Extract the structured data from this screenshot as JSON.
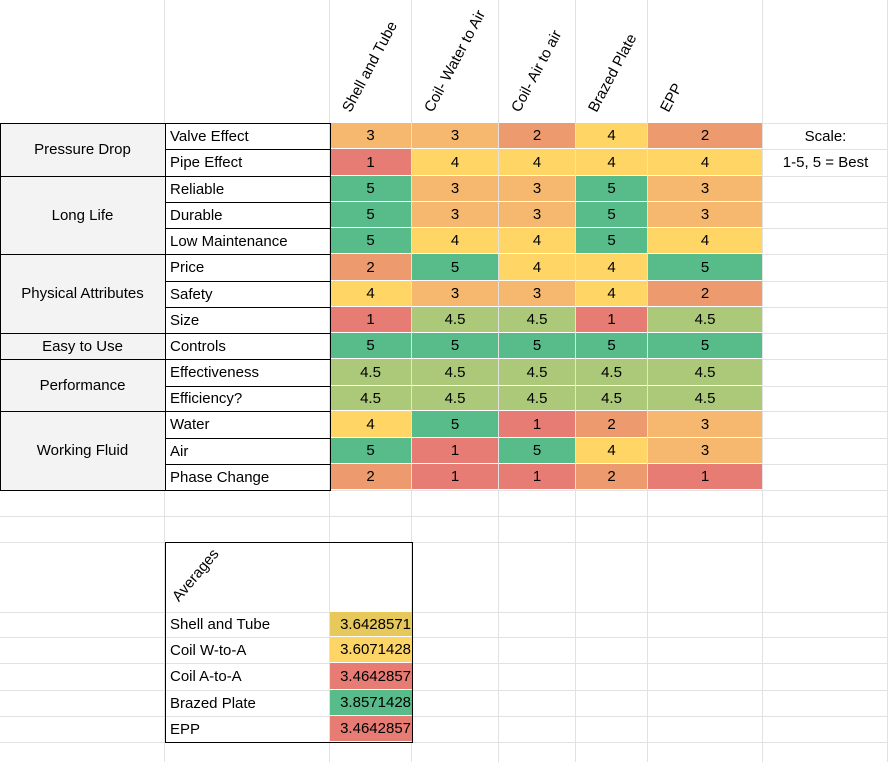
{
  "columns": [
    "Shell and Tube",
    "Coil- Water to Air",
    "Coil- Air to air",
    "Brazed Plate",
    "EPP"
  ],
  "scale": {
    "label": "Scale:",
    "value": "1-5, 5 = Best"
  },
  "colors": {
    "1": "#e67c73",
    "2": "#ed9a6f",
    "3": "#f6b86f",
    "4": "#ffd666",
    "4.5": "#abc978",
    "5": "#57bb8a"
  },
  "groups": [
    {
      "name": "Pressure Drop",
      "rows": [
        {
          "label": "Valve Effect",
          "values": [
            "3",
            "3",
            "2",
            "4",
            "2"
          ]
        },
        {
          "label": "Pipe Effect",
          "values": [
            "1",
            "4",
            "4",
            "4",
            "4"
          ]
        }
      ]
    },
    {
      "name": "Long Life",
      "rows": [
        {
          "label": "Reliable",
          "values": [
            "5",
            "3",
            "3",
            "5",
            "3"
          ]
        },
        {
          "label": "Durable",
          "values": [
            "5",
            "3",
            "3",
            "5",
            "3"
          ]
        },
        {
          "label": "Low Maintenance",
          "values": [
            "5",
            "4",
            "4",
            "5",
            "4"
          ]
        }
      ]
    },
    {
      "name": "Physical Attributes",
      "rows": [
        {
          "label": "Price",
          "values": [
            "2",
            "5",
            "4",
            "4",
            "5"
          ]
        },
        {
          "label": "Safety",
          "values": [
            "4",
            "3",
            "3",
            "4",
            "2"
          ]
        },
        {
          "label": "Size",
          "values": [
            "1",
            "4.5",
            "4.5",
            "1",
            "4.5"
          ]
        }
      ]
    },
    {
      "name": "Easy to Use",
      "rows": [
        {
          "label": "Controls",
          "values": [
            "5",
            "5",
            "5",
            "5",
            "5"
          ]
        }
      ]
    },
    {
      "name": "Performance",
      "rows": [
        {
          "label": "Effectiveness",
          "values": [
            "4.5",
            "4.5",
            "4.5",
            "4.5",
            "4.5"
          ]
        },
        {
          "label": "Efficiency?",
          "values": [
            "4.5",
            "4.5",
            "4.5",
            "4.5",
            "4.5"
          ]
        }
      ]
    },
    {
      "name": "Working Fluid",
      "rows": [
        {
          "label": "Water",
          "values": [
            "4",
            "5",
            "1",
            "2",
            "3"
          ]
        },
        {
          "label": "Air",
          "values": [
            "5",
            "1",
            "5",
            "4",
            "3"
          ]
        },
        {
          "label": "Phase Change",
          "values": [
            "2",
            "1",
            "1",
            "2",
            "1"
          ]
        }
      ]
    }
  ],
  "averages": {
    "title": "Averages",
    "rows": [
      {
        "label": "Shell and Tube",
        "value": "3.6428571",
        "color": "#e7c85b"
      },
      {
        "label": "Coil W-to-A",
        "value": "3.6071428",
        "color": "#fdd466"
      },
      {
        "label": "Coil A-to-A",
        "value": "3.4642857",
        "color": "#e67c73"
      },
      {
        "label": "Brazed Plate",
        "value": "3.8571428",
        "color": "#57bb8a"
      },
      {
        "label": "EPP",
        "value": "3.4642857",
        "color": "#e67c73"
      }
    ]
  }
}
